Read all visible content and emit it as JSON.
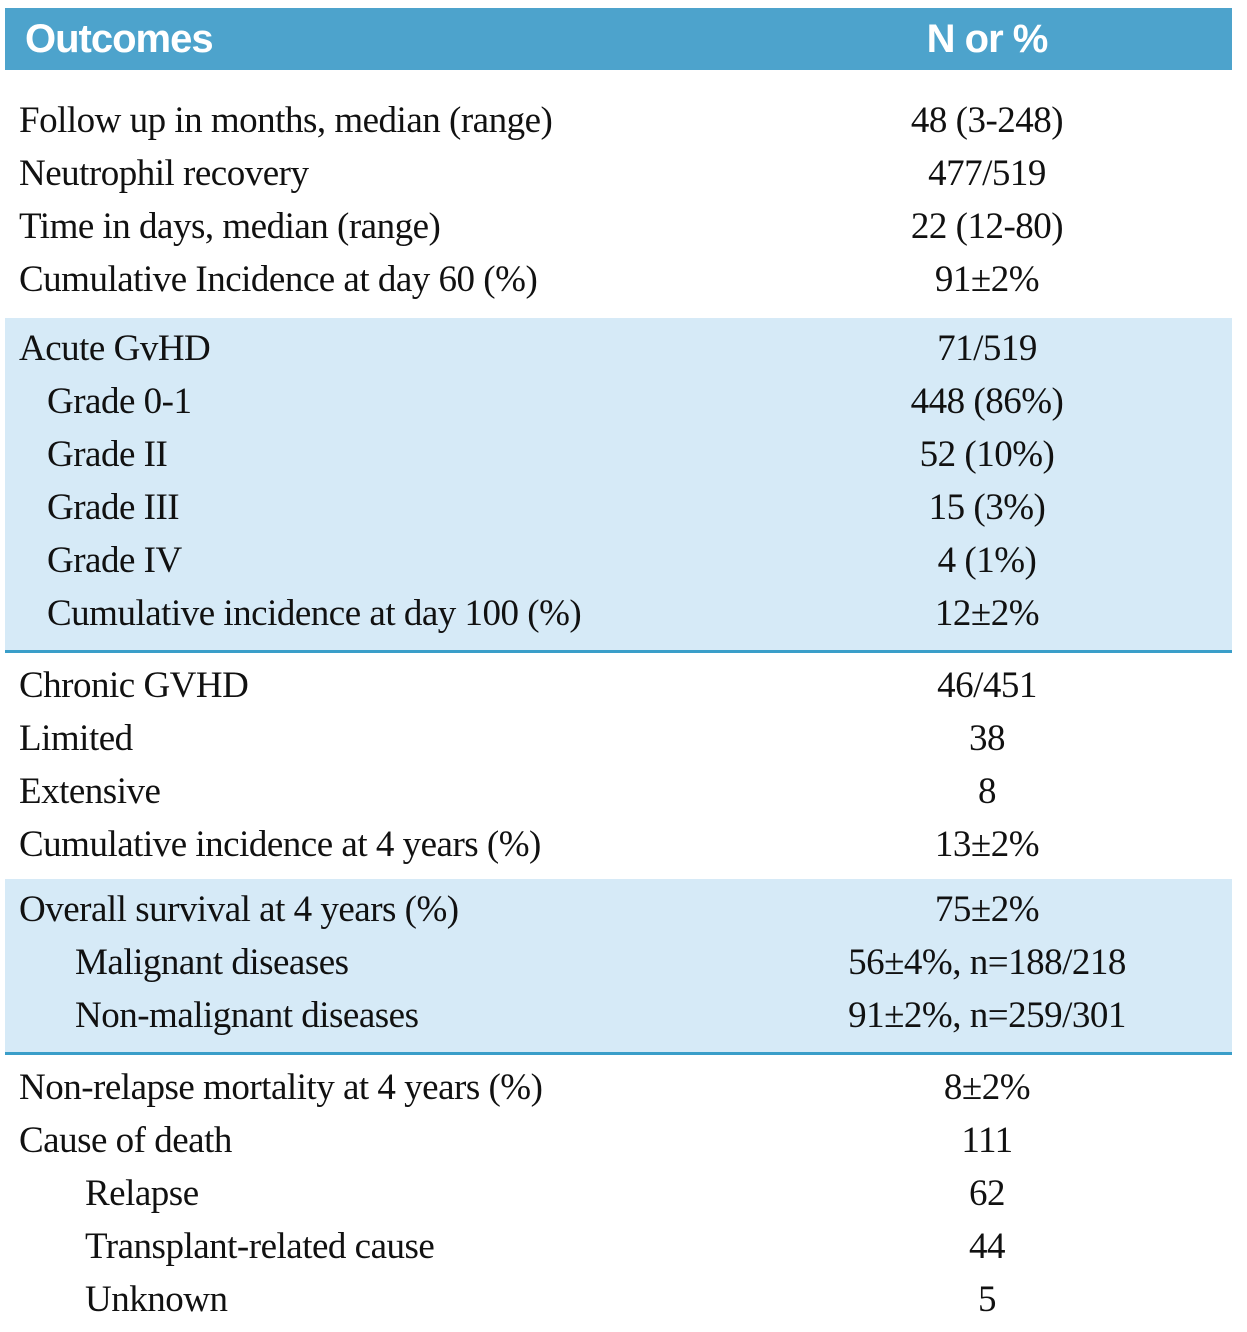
{
  "table": {
    "header": {
      "col1": "Outcomes",
      "col2": "N or %"
    },
    "sections": [
      {
        "highlighted": false,
        "rows": [
          {
            "label": "Follow up in months, median (range)",
            "value": "48 (3-248)",
            "indent": 0
          },
          {
            "label": "Neutrophil recovery",
            "value": "477/519",
            "indent": 0
          },
          {
            "label": "Time in days, median (range)",
            "value": "22 (12-80)",
            "indent": 0
          },
          {
            "label": "Cumulative Incidence at day 60 (%)",
            "value": "91±2%",
            "indent": 0
          }
        ]
      },
      {
        "highlighted": true,
        "rows": [
          {
            "label": "Acute GvHD",
            "value": "71/519",
            "indent": 0
          },
          {
            "label": "Grade 0-1",
            "value": "448 (86%)",
            "indent": 1
          },
          {
            "label": "Grade II",
            "value": "52 (10%)",
            "indent": 1
          },
          {
            "label": "Grade III",
            "value": "15 (3%)",
            "indent": 1
          },
          {
            "label": "Grade IV",
            "value": "4 (1%)",
            "indent": 1
          },
          {
            "label": "Cumulative incidence at day 100 (%)",
            "value": "12±2%",
            "indent": 1
          }
        ]
      },
      {
        "highlighted": false,
        "rows": [
          {
            "label": "Chronic GVHD",
            "value": "46/451",
            "indent": 0
          },
          {
            "label": "Limited",
            "value": "38",
            "indent": 0
          },
          {
            "label": "Extensive",
            "value": "8",
            "indent": 0
          },
          {
            "label": "Cumulative incidence at 4 years (%)",
            "value": "13±2%",
            "indent": 0
          }
        ]
      },
      {
        "highlighted": true,
        "rows": [
          {
            "label": "Overall survival at 4 years (%)",
            "value": "75±2%",
            "indent": 0
          },
          {
            "label": "Malignant diseases",
            "value": "56±4%, n=188/218",
            "indent": 2
          },
          {
            "label": "Non-malignant diseases",
            "value": "91±2%, n=259/301",
            "indent": 2
          }
        ]
      },
      {
        "highlighted": false,
        "rows": [
          {
            "label": "Non-relapse mortality at 4 years (%)",
            "value": "8±2%",
            "indent": 0
          },
          {
            "label": "Cause of death",
            "value": "111",
            "indent": 0
          },
          {
            "label": "Relapse",
            "value": "62",
            "indent": 3
          },
          {
            "label": "Transplant-related cause",
            "value": "44",
            "indent": 3
          },
          {
            "label": "Unknown",
            "value": "5",
            "indent": 3
          }
        ]
      }
    ],
    "colors": {
      "header_bg": "#4da3cc",
      "band_bg": "#d6eaf7",
      "separator": "#3a9ec9",
      "bottom_rule": "#58595b",
      "header_text": "#ffffff",
      "body_text": "#111111"
    }
  }
}
